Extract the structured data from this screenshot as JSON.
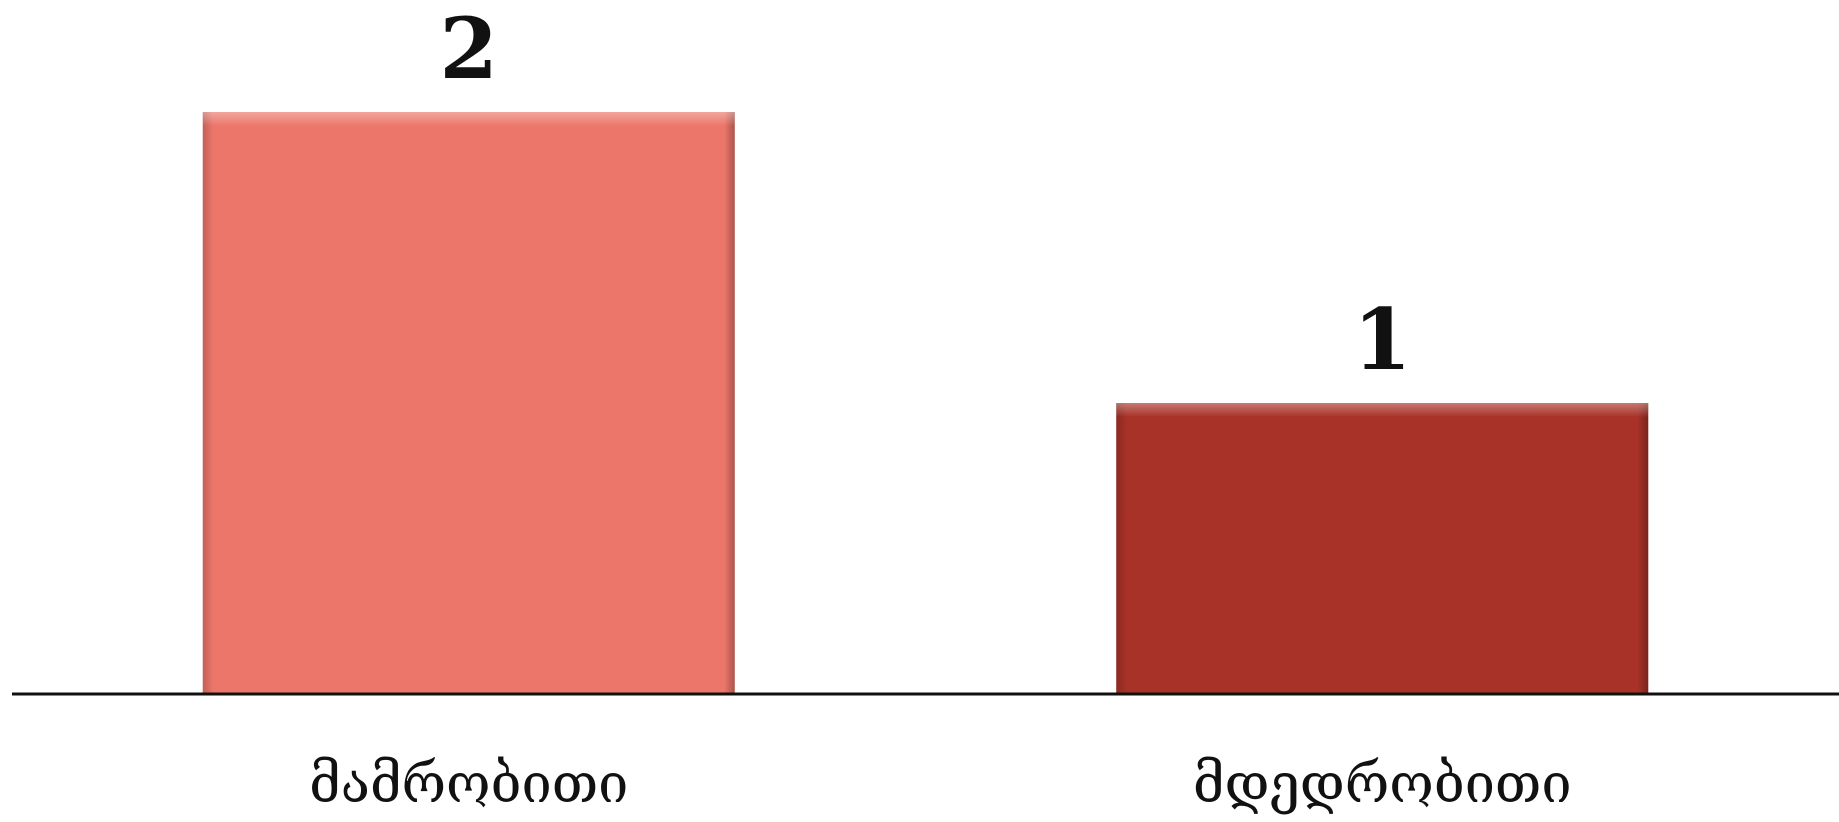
{
  "chart_data": {
    "type": "bar",
    "categories": [
      "მამრობითი",
      "მდედრობითი"
    ],
    "values": [
      2,
      1
    ],
    "ylim": [
      0,
      2
    ],
    "grid": false,
    "legend": "none",
    "colors": [
      "#ec766a",
      "#a83228"
    ]
  }
}
